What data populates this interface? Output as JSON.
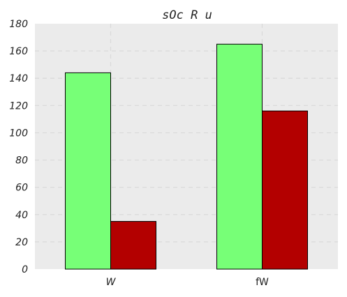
{
  "chart_data": {
    "type": "bar",
    "title": "sOc R  u",
    "xlabel": "",
    "ylabel": "",
    "categories": [
      "W",
      "fW"
    ],
    "series": [
      {
        "values": [
          144,
          165
        ],
        "color": "#77ff77"
      },
      {
        "values": [
          35,
          116
        ],
        "color": "#b30000"
      }
    ],
    "ylim": [
      0,
      180
    ],
    "yticks": [
      0,
      20,
      40,
      60,
      80,
      100,
      120,
      140,
      160,
      180
    ],
    "grid": true,
    "plot_background": "#ebebeb",
    "grid_color": "#d9d9d9"
  }
}
